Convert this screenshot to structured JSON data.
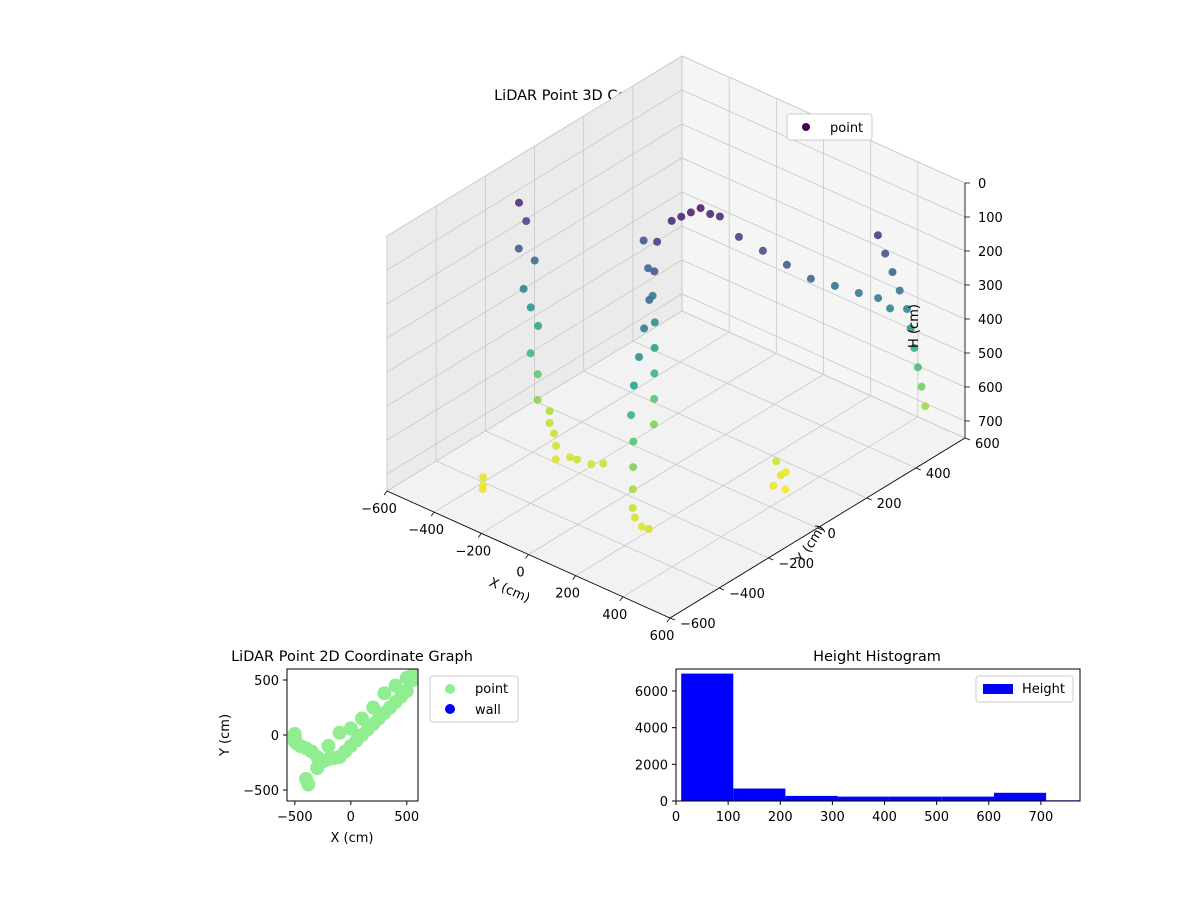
{
  "chart_data": [
    {
      "type": "scatter",
      "projection": "3d",
      "title": "LiDAR Point 3D Coordinate Graph",
      "xlabel": "X (cm)",
      "ylabel": "Y (cm)",
      "zlabel": "H (cm)",
      "xlim": [
        -600,
        600
      ],
      "ylim": [
        -600,
        600
      ],
      "zlim": [
        750,
        0
      ],
      "xticks": [
        -600,
        -400,
        -200,
        0,
        200,
        400,
        600
      ],
      "yticks": [
        -600,
        -400,
        -200,
        0,
        200,
        400,
        600
      ],
      "zticks": [
        0,
        100,
        200,
        300,
        400,
        500,
        600,
        700
      ],
      "legend": {
        "entries": [
          "point"
        ],
        "placement": "top-right"
      },
      "colormap": "viridis",
      "grid": true,
      "series": [
        {
          "name": "point",
          "points": [
            [
              -520,
              -140,
              80
            ],
            [
              -510,
              -120,
              140
            ],
            [
              -500,
              -160,
              200
            ],
            [
              -495,
              -100,
              260
            ],
            [
              -490,
              -150,
              320
            ],
            [
              -480,
              -130,
              380
            ],
            [
              -470,
              -110,
              440
            ],
            [
              -460,
              -150,
              500
            ],
            [
              -440,
              -140,
              560
            ],
            [
              -420,
              -160,
              620
            ],
            [
              -400,
              -130,
              660
            ],
            [
              -380,
              -150,
              680
            ],
            [
              -340,
              -170,
              690
            ],
            [
              -300,
              -200,
              700
            ],
            [
              -260,
              -240,
              710
            ],
            [
              -220,
              -220,
              700
            ],
            [
              -180,
              -230,
              690
            ],
            [
              -140,
              -210,
              700
            ],
            [
              -100,
              -200,
              690
            ],
            [
              -60,
              40,
              70
            ],
            [
              -40,
              60,
              60
            ],
            [
              -20,
              80,
              50
            ],
            [
              0,
              100,
              40
            ],
            [
              20,
              120,
              60
            ],
            [
              40,
              140,
              70
            ],
            [
              -80,
              0,
              120
            ],
            [
              -50,
              -40,
              180
            ],
            [
              -30,
              -80,
              240
            ],
            [
              -10,
              -120,
              300
            ],
            [
              10,
              -160,
              360
            ],
            [
              30,
              -200,
              420
            ],
            [
              60,
              -240,
              480
            ],
            [
              90,
              -260,
              540
            ],
            [
              110,
              -280,
              600
            ],
            [
              130,
              -300,
              650
            ],
            [
              150,
              -320,
              690
            ],
            [
              180,
              -340,
              700
            ],
            [
              220,
              -350,
              710
            ],
            [
              260,
              -360,
              700
            ],
            [
              -200,
              60,
              180
            ],
            [
              -160,
              40,
              240
            ],
            [
              -120,
              20,
              300
            ],
            [
              -90,
              0,
              360
            ],
            [
              -70,
              -20,
              420
            ],
            [
              -50,
              -40,
              480
            ],
            [
              -30,
              -60,
              540
            ],
            [
              -10,
              -80,
              600
            ],
            [
              100,
              160,
              120
            ],
            [
              160,
              200,
              160
            ],
            [
              220,
              240,
              200
            ],
            [
              280,
              280,
              240
            ],
            [
              340,
              320,
              260
            ],
            [
              400,
              360,
              280
            ],
            [
              440,
              400,
              300
            ],
            [
              470,
              420,
              330
            ],
            [
              460,
              380,
              100
            ],
            [
              470,
              400,
              160
            ],
            [
              480,
              420,
              220
            ],
            [
              490,
              440,
              280
            ],
            [
              500,
              460,
              340
            ],
            [
              505,
              470,
              400
            ],
            [
              510,
              480,
              460
            ],
            [
              515,
              490,
              520
            ],
            [
              520,
              500,
              580
            ],
            [
              525,
              510,
              640
            ],
            [
              300,
              120,
              700
            ],
            [
              340,
              100,
              720
            ],
            [
              380,
              80,
              740
            ],
            [
              350,
              60,
              730
            ],
            [
              320,
              140,
              735
            ],
            [
              -380,
              -420,
              720
            ],
            [
              -360,
              -440,
              730
            ],
            [
              -340,
              -460,
              725
            ]
          ]
        }
      ]
    },
    {
      "type": "scatter",
      "title": "LiDAR Point 2D Coordinate Graph",
      "xlabel": "X (cm)",
      "ylabel": "Y (cm)",
      "xlim": [
        -570,
        600
      ],
      "ylim": [
        -600,
        600
      ],
      "xticks": [
        -500,
        0,
        500
      ],
      "yticks": [
        -500,
        0,
        500
      ],
      "legend": {
        "entries": [
          "point",
          "wall"
        ],
        "placement": "outside-right"
      },
      "series": [
        {
          "name": "point",
          "color": "#90ee90",
          "points": [
            [
              -500,
              -20
            ],
            [
              -500,
              10
            ],
            [
              -500,
              -60
            ],
            [
              -480,
              -80
            ],
            [
              -450,
              -100
            ],
            [
              -400,
              -120
            ],
            [
              -350,
              -150
            ],
            [
              -300,
              -200
            ],
            [
              -250,
              -240
            ],
            [
              -200,
              -220
            ],
            [
              -150,
              -210
            ],
            [
              -100,
              -200
            ],
            [
              -50,
              -150
            ],
            [
              0,
              -100
            ],
            [
              50,
              -50
            ],
            [
              100,
              0
            ],
            [
              150,
              50
            ],
            [
              200,
              100
            ],
            [
              250,
              150
            ],
            [
              300,
              200
            ],
            [
              350,
              250
            ],
            [
              400,
              300
            ],
            [
              450,
              350
            ],
            [
              500,
              400
            ],
            [
              550,
              500
            ],
            [
              580,
              580
            ],
            [
              -400,
              -400
            ],
            [
              -380,
              -450
            ],
            [
              -300,
              -300
            ],
            [
              -200,
              -100
            ],
            [
              -100,
              20
            ],
            [
              0,
              60
            ],
            [
              100,
              150
            ],
            [
              200,
              250
            ],
            [
              300,
              380
            ],
            [
              400,
              450
            ],
            [
              500,
              520
            ],
            [
              560,
              560
            ]
          ]
        },
        {
          "name": "wall",
          "color": "#0000ff",
          "points": []
        }
      ]
    },
    {
      "type": "bar",
      "subtype": "histogram",
      "title": "Height Histogram",
      "xlabel": "",
      "ylabel": "",
      "xlim": [
        0,
        775
      ],
      "ylim": [
        0,
        7200
      ],
      "xticks": [
        0,
        100,
        200,
        300,
        400,
        500,
        600,
        700
      ],
      "yticks": [
        0,
        2000,
        4000,
        6000
      ],
      "legend": {
        "entries": [
          "Height"
        ],
        "placement": "top-right"
      },
      "color": "#0000ff",
      "bins": [
        {
          "from": 10,
          "to": 110,
          "count": 6950
        },
        {
          "from": 110,
          "to": 210,
          "count": 680
        },
        {
          "from": 210,
          "to": 310,
          "count": 280
        },
        {
          "from": 310,
          "to": 410,
          "count": 240
        },
        {
          "from": 410,
          "to": 510,
          "count": 240
        },
        {
          "from": 510,
          "to": 610,
          "count": 240
        },
        {
          "from": 610,
          "to": 710,
          "count": 450
        },
        {
          "from": 710,
          "to": 775,
          "count": 40
        }
      ]
    }
  ]
}
